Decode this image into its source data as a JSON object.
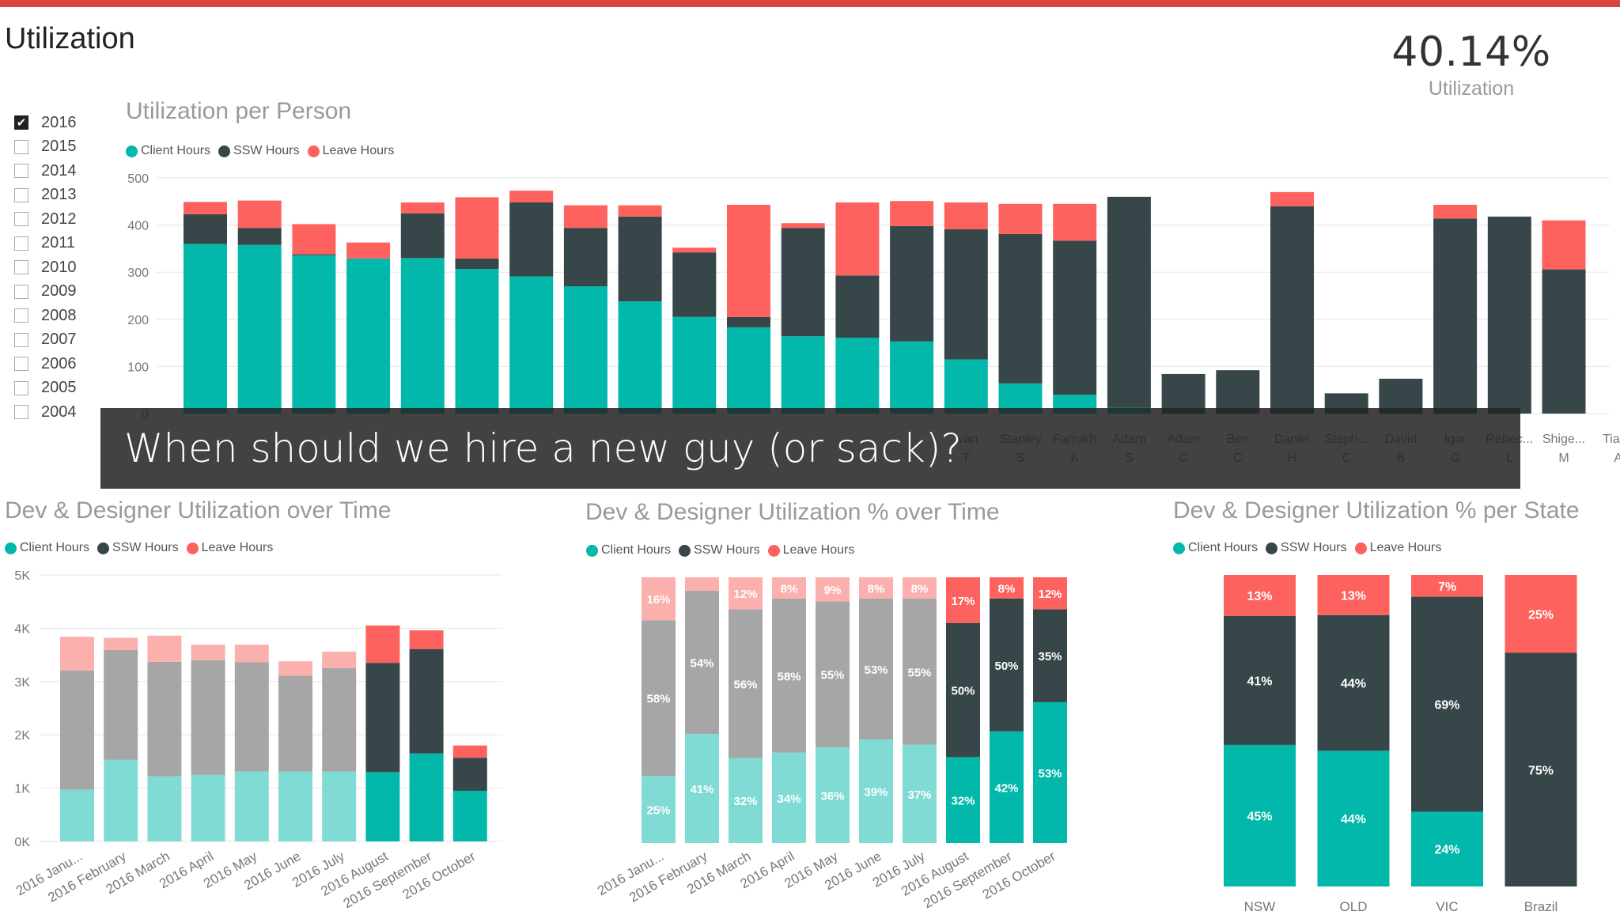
{
  "page": {
    "title": "Utilization"
  },
  "kpi": {
    "value": "40.14%",
    "label": "Utilization"
  },
  "slicer": {
    "years": [
      {
        "label": "2016",
        "checked": true
      },
      {
        "label": "2015",
        "checked": false
      },
      {
        "label": "2014",
        "checked": false
      },
      {
        "label": "2013",
        "checked": false
      },
      {
        "label": "2012",
        "checked": false
      },
      {
        "label": "2011",
        "checked": false
      },
      {
        "label": "2010",
        "checked": false
      },
      {
        "label": "2009",
        "checked": false
      },
      {
        "label": "2008",
        "checked": false
      },
      {
        "label": "2007",
        "checked": false
      },
      {
        "label": "2006",
        "checked": false
      },
      {
        "label": "2005",
        "checked": false
      },
      {
        "label": "2004",
        "checked": false
      }
    ]
  },
  "legend": {
    "client": "Client Hours",
    "ssw": "SSW Hours",
    "leave": "Leave Hours"
  },
  "colors": {
    "client": "#01b8aa",
    "ssw": "#374649",
    "leave": "#fd625e",
    "client_light": "#80dbd4",
    "ssw_light": "#a6a6a6",
    "leave_light": "#fcb0ae",
    "accent": "#d64541"
  },
  "caption": "When should we hire a new guy (or sack)?",
  "chart_data": [
    {
      "id": "per-person",
      "type": "bar",
      "stacked": true,
      "title": "Utilization per Person",
      "ylim": [
        0,
        500
      ],
      "yticks": [
        "0",
        "100",
        "200",
        "300",
        "400",
        "500"
      ],
      "categories": [
        "",
        "",
        "",
        "",
        "",
        "",
        "",
        "",
        "",
        "",
        "",
        "",
        "",
        "",
        "Ivan T",
        "Stanley S",
        "Farrukh K",
        "Adam S",
        "Adam C",
        "Ben C",
        "Daniel H",
        "Steph... C",
        "David B",
        "Igor G",
        "Rebec... L",
        "Shige... M",
        "Tiago A"
      ],
      "series": [
        {
          "name": "Client Hours",
          "values": [
            360,
            358,
            336,
            329,
            330,
            307,
            291,
            270,
            238,
            205,
            183,
            164,
            161,
            153,
            115,
            64,
            40,
            12,
            0,
            0,
            0,
            0,
            0,
            0,
            0,
            0,
            0
          ]
        },
        {
          "name": "SSW Hours",
          "values": [
            63,
            36,
            2,
            0,
            95,
            22,
            157,
            124,
            180,
            137,
            22,
            230,
            132,
            245,
            276,
            317,
            327,
            448,
            84,
            92,
            440,
            43,
            74,
            414,
            418,
            306,
            0
          ]
        },
        {
          "name": "Leave Hours",
          "values": [
            26,
            58,
            64,
            34,
            23,
            130,
            25,
            48,
            24,
            10,
            238,
            10,
            155,
            53,
            57,
            64,
            78,
            0,
            0,
            0,
            30,
            0,
            0,
            29,
            0,
            104,
            0
          ]
        }
      ],
      "grid": true
    },
    {
      "id": "over-time",
      "type": "bar",
      "stacked": true,
      "title": "Dev & Designer Utilization over Time",
      "ylim": [
        0,
        5000
      ],
      "yticks": [
        "0K",
        "1K",
        "2K",
        "3K",
        "4K",
        "5K"
      ],
      "categories": [
        "2016 Janu...",
        "2016 February",
        "2016 March",
        "2016 April",
        "2016 May",
        "2016 June",
        "2016 July",
        "2016 August",
        "2016 September",
        "2016 October"
      ],
      "series": [
        {
          "name": "Client Hours",
          "values": [
            970,
            1530,
            1220,
            1250,
            1310,
            1310,
            1310,
            1300,
            1650,
            950
          ]
        },
        {
          "name": "SSW Hours",
          "values": [
            2240,
            2060,
            2150,
            2150,
            2050,
            1800,
            1940,
            2050,
            1960,
            620
          ]
        },
        {
          "name": "Leave Hours",
          "values": [
            630,
            230,
            490,
            290,
            330,
            270,
            310,
            700,
            350,
            230
          ]
        }
      ],
      "grid": true
    },
    {
      "id": "pct-over-time",
      "type": "bar",
      "stacked": true,
      "percent": true,
      "title": "Dev & Designer Utilization % over Time",
      "categories": [
        "2016 Janu...",
        "2016 February",
        "2016 March",
        "2016 April",
        "2016 May",
        "2016 June",
        "2016 July",
        "2016 August",
        "2016 September",
        "2016 October"
      ],
      "series": [
        {
          "name": "Client Hours",
          "values": [
            25,
            41,
            32,
            34,
            36,
            39,
            37,
            32,
            42,
            53
          ],
          "labels": [
            "25%",
            "41%",
            "32%",
            "34%",
            "36%",
            "39%",
            "37%",
            "32%",
            "42%",
            "53%"
          ]
        },
        {
          "name": "SSW Hours",
          "values": [
            58,
            54,
            56,
            58,
            55,
            53,
            55,
            50,
            50,
            35
          ],
          "labels": [
            "58%",
            "54%",
            "56%",
            "58%",
            "55%",
            "53%",
            "55%",
            "50%",
            "50%",
            "35%"
          ]
        },
        {
          "name": "Leave Hours",
          "values": [
            16,
            5,
            12,
            8,
            9,
            8,
            8,
            17,
            8,
            12
          ],
          "labels": [
            "16%",
            "",
            "12%",
            "8%",
            "9%",
            "8%",
            "8%",
            "17%",
            "8%",
            "12%"
          ]
        }
      ]
    },
    {
      "id": "pct-per-state",
      "type": "bar",
      "stacked": true,
      "percent": true,
      "title": "Dev & Designer Utilization % per State",
      "categories": [
        "NSW",
        "QLD",
        "VIC",
        "Brazil"
      ],
      "series": [
        {
          "name": "Client Hours",
          "values": [
            45,
            44,
            24,
            0
          ],
          "labels": [
            "45%",
            "44%",
            "24%",
            ""
          ]
        },
        {
          "name": "SSW Hours",
          "values": [
            41,
            44,
            69,
            75
          ],
          "labels": [
            "41%",
            "44%",
            "69%",
            "75%"
          ]
        },
        {
          "name": "Leave Hours",
          "values": [
            13,
            13,
            7,
            25
          ],
          "labels": [
            "13%",
            "13%",
            "7%",
            "25%"
          ]
        }
      ]
    }
  ]
}
